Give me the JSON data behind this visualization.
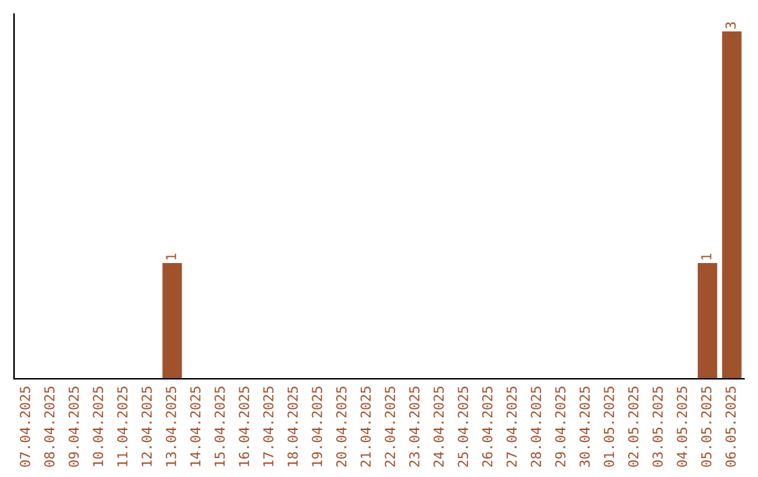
{
  "chart_data": {
    "type": "bar",
    "categories": [
      "07.04.2025",
      "08.04.2025",
      "09.04.2025",
      "10.04.2025",
      "11.04.2025",
      "12.04.2025",
      "13.04.2025",
      "14.04.2025",
      "15.04.2025",
      "16.04.2025",
      "17.04.2025",
      "18.04.2025",
      "19.04.2025",
      "20.04.2025",
      "21.04.2025",
      "22.04.2025",
      "23.04.2025",
      "24.04.2025",
      "25.04.2025",
      "26.04.2025",
      "27.04.2025",
      "28.04.2025",
      "29.04.2025",
      "30.04.2025",
      "01.05.2025",
      "02.05.2025",
      "03.05.2025",
      "04.05.2025",
      "05.05.2025",
      "06.05.2025"
    ],
    "values": [
      0,
      0,
      0,
      0,
      0,
      0,
      1,
      0,
      0,
      0,
      0,
      0,
      0,
      0,
      0,
      0,
      0,
      0,
      0,
      0,
      0,
      0,
      0,
      0,
      0,
      0,
      0,
      0,
      1,
      3
    ],
    "value_labels": [
      null,
      null,
      null,
      null,
      null,
      null,
      "1",
      null,
      null,
      null,
      null,
      null,
      null,
      null,
      null,
      null,
      null,
      null,
      null,
      null,
      null,
      null,
      null,
      null,
      null,
      null,
      null,
      null,
      "1",
      "3"
    ],
    "color": "#a0522d",
    "tick_labels": "x",
    "grid": false,
    "legend": false
  }
}
